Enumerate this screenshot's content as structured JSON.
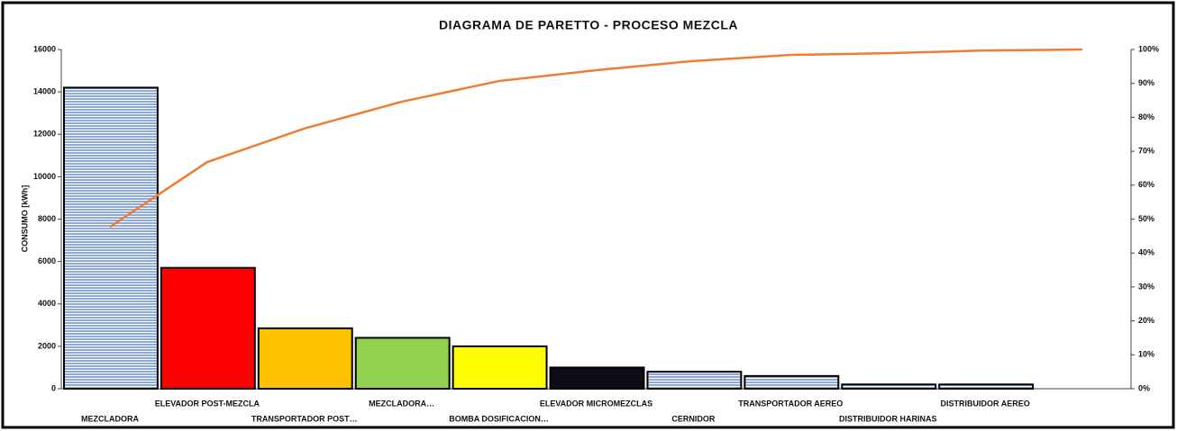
{
  "chart_data": {
    "type": "bar",
    "title": "DIAGRAMA DE PARETTO - PROCESO MEZCLA",
    "y_label": "CONSUMO [kWh]",
    "categories": [
      "MEZCLADORA",
      "ELEVADOR POST-MEZCLA",
      "TRANSPORTADOR POST…",
      "MEZCLADORA…",
      "BOMBA DOSIFICACION…",
      "ELEVADOR MICROMEZCLAS",
      "CERNIDOR",
      "TRANSPORTADOR AEREO",
      "DISTRIBUIDOR HARINAS",
      "DISTRIBUIDOR AEREO",
      null
    ],
    "values": [
      14200,
      5700,
      2850,
      2400,
      2000,
      1000,
      800,
      600,
      200,
      200,
      null
    ],
    "colors": [
      "#8eaadb",
      "#ff0000",
      "#ffc000",
      "#92d050",
      "#ffff00",
      "#0d0d1a",
      "#8eaadb",
      "#8eaadb",
      "#8eaadb",
      "#8eaadb",
      "#8eaadb"
    ],
    "hatch": [
      true,
      false,
      false,
      false,
      false,
      false,
      true,
      true,
      true,
      true,
      true
    ],
    "ylim": [
      0,
      16000
    ],
    "yticks": [
      0,
      2000,
      4000,
      6000,
      8000,
      10000,
      12000,
      14000,
      16000
    ],
    "line": {
      "values": [
        47.7,
        66.8,
        76.7,
        84.6,
        90.7,
        93.9,
        96.6,
        98.4,
        98.9,
        99.7,
        100
      ],
      "color": "#ed7d31",
      "axis": "y2"
    },
    "y2lim": [
      0,
      100
    ],
    "y2ticks": [
      {
        "value": 0,
        "label": "0%"
      },
      {
        "value": 10,
        "label": "10%"
      },
      {
        "value": 20,
        "label": "20%"
      },
      {
        "value": 30,
        "label": "30%"
      },
      {
        "value": 40,
        "label": "40%"
      },
      {
        "value": 50,
        "label": "50%"
      },
      {
        "value": 60,
        "label": "60%"
      },
      {
        "value": 70,
        "label": "70%"
      },
      {
        "value": 80,
        "label": "80%"
      },
      {
        "value": 90,
        "label": "90%"
      },
      {
        "value": 100,
        "label": "100%"
      }
    ]
  }
}
